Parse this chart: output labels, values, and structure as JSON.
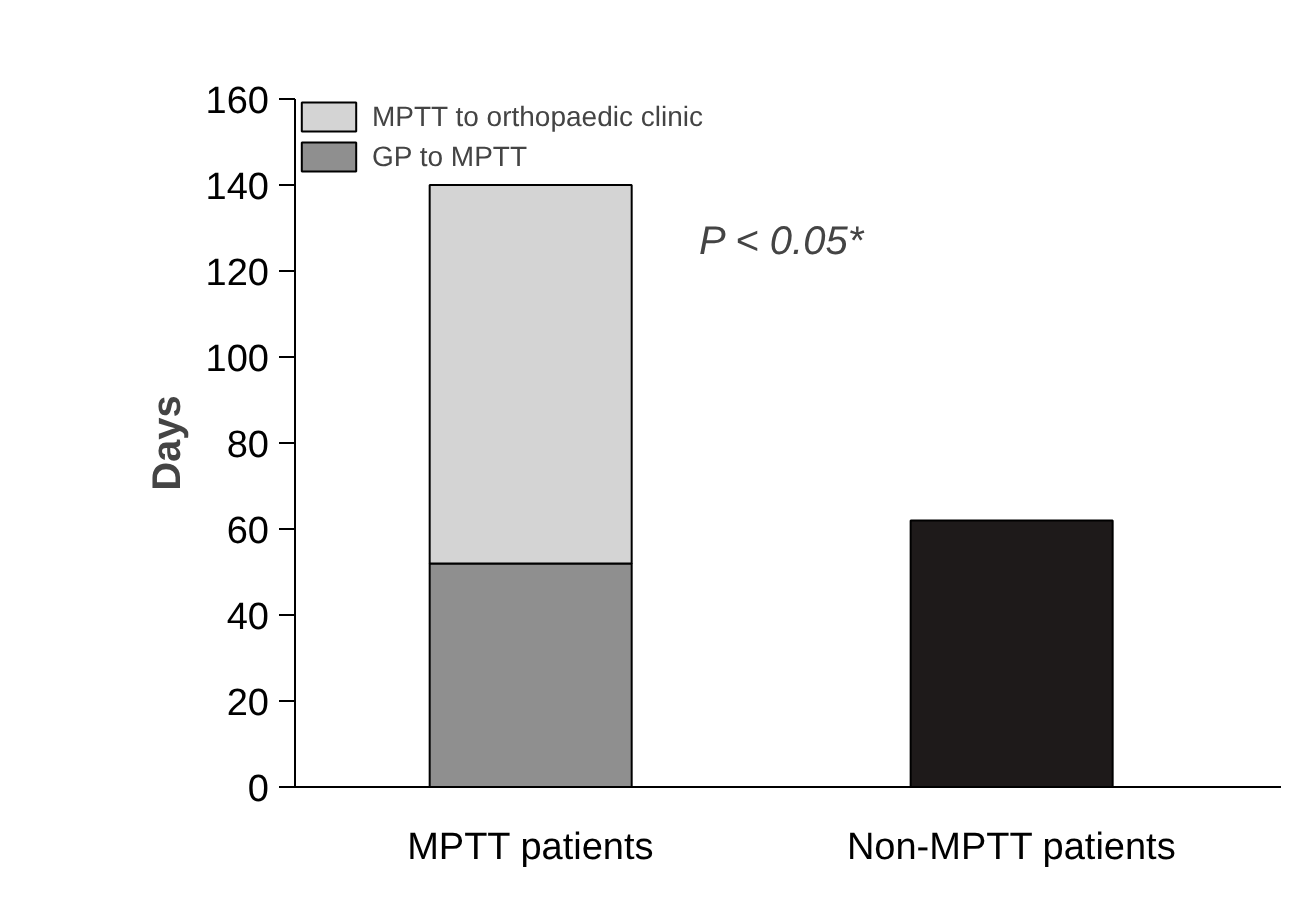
{
  "chart_data": {
    "type": "bar",
    "stacked": true,
    "ylabel": "Days",
    "categories": [
      "MPTT patients",
      "Non-MPTT patients"
    ],
    "series": [
      {
        "name": "GP to MPTT",
        "color": "#8f8f8f",
        "values": [
          52,
          null
        ]
      },
      {
        "name": "MPTT to orthopaedic clinic",
        "color": "#d4d4d4",
        "values": [
          88,
          null
        ]
      },
      {
        "color": "#1e1a1a",
        "values": [
          null,
          62
        ]
      }
    ],
    "ylim": [
      0,
      160
    ],
    "yticks": [
      0,
      20,
      40,
      60,
      80,
      100,
      120,
      140,
      160
    ],
    "grid": false,
    "legend": "top left",
    "annotations": [
      "P < 0.05*"
    ]
  }
}
